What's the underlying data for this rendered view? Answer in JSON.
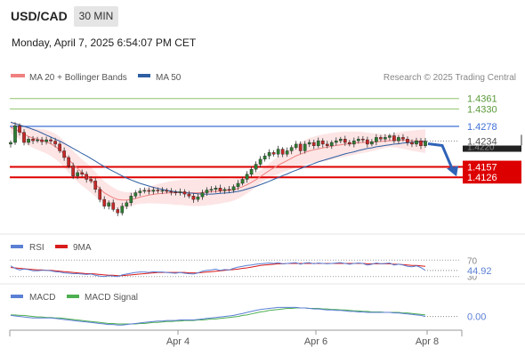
{
  "header": {
    "symbol": "USD/CAD",
    "timeframe": "30 MIN",
    "datetime": "Monday, April 7, 2025 6:54:07 PM CET"
  },
  "legend": {
    "ma20_label": "MA 20 + Bollinger Bands",
    "ma50_label": "MA 50",
    "credit": "Research © 2025 Trading Central"
  },
  "colors": {
    "candle_up": "#2e7d32",
    "candle_down": "#c62828",
    "ma20": "#f08080",
    "bb_fill": "#fde0e0",
    "ma50": "#2e5fa3",
    "support": "#dd0000",
    "resistance_blue": "#3f6fd8",
    "resistance_green": "#8fc46a",
    "rsi": "#5b7fd4",
    "rsi_ma": "#d81b1b",
    "macd": "#5b7fd4",
    "macd_signal": "#4caf50",
    "arrow": "#2f63b8"
  },
  "chart_data": [
    {
      "type": "candlestick",
      "title": "USD/CAD",
      "timeframe": "30 MIN",
      "x_ticks": [
        "Apr 4",
        "Apr 6",
        "Apr 8"
      ],
      "levels": [
        {
          "value": 1.4361,
          "label": "1.4361",
          "kind": "resistance"
        },
        {
          "value": 1.433,
          "label": "1.4330",
          "kind": "resistance"
        },
        {
          "value": 1.4278,
          "label": "1.4278",
          "kind": "pivot"
        },
        {
          "value": 1.4157,
          "label": "1.4157",
          "kind": "support"
        },
        {
          "value": 1.4126,
          "label": "1.4126",
          "kind": "support"
        }
      ],
      "last_price": {
        "value": 1.4234,
        "label": "1.4234"
      },
      "hidden_label": "1.4220",
      "ylim": [
        1.397,
        1.44
      ],
      "closes": [
        1.423,
        1.428,
        1.426,
        1.423,
        1.424,
        1.4235,
        1.4238,
        1.4232,
        1.4238,
        1.4234,
        1.4225,
        1.4205,
        1.4185,
        1.416,
        1.413,
        1.414,
        1.4135,
        1.412,
        1.4115,
        1.409,
        1.406,
        1.404,
        1.405,
        1.403,
        1.402,
        1.404,
        1.405,
        1.407,
        1.408,
        1.4085,
        1.4087,
        1.4084,
        1.4088,
        1.4086,
        1.4087,
        1.4084,
        1.4082,
        1.408,
        1.4083,
        1.4076,
        1.407,
        1.406,
        1.4068,
        1.408,
        1.4088,
        1.409,
        1.4094,
        1.4086,
        1.409,
        1.4088,
        1.4098,
        1.4108,
        1.412,
        1.4135,
        1.415,
        1.4165,
        1.418,
        1.419,
        1.42,
        1.4195,
        1.421,
        1.4195,
        1.4205,
        1.4215,
        1.4225,
        1.4205,
        1.4225,
        1.423,
        1.422,
        1.4235,
        1.4225,
        1.422,
        1.423,
        1.4235,
        1.424,
        1.423,
        1.4225,
        1.4235,
        1.424,
        1.4238,
        1.4225,
        1.4232,
        1.4245,
        1.424,
        1.4245,
        1.425,
        1.4235,
        1.4245,
        1.424,
        1.423,
        1.4225,
        1.4235,
        1.422,
        1.4234
      ],
      "ma20": [
        1.4275,
        1.427,
        1.4262,
        1.4255,
        1.4248,
        1.4243,
        1.424,
        1.4236,
        1.4232,
        1.4226,
        1.4218,
        1.4208,
        1.4195,
        1.418,
        1.4165,
        1.4152,
        1.414,
        1.413,
        1.4118,
        1.4105,
        1.4092,
        1.408,
        1.4072,
        1.4065,
        1.406,
        1.4058,
        1.4058,
        1.406,
        1.4063,
        1.4067,
        1.407,
        1.4073,
        1.4075,
        1.4077,
        1.4078,
        1.4079,
        1.408,
        1.408,
        1.4081,
        1.4081,
        1.408,
        1.408,
        1.408,
        1.4081,
        1.4082,
        1.4083,
        1.4084,
        1.4085,
        1.4086,
        1.4087,
        1.4089,
        1.4093,
        1.4098,
        1.4104,
        1.4111,
        1.4119,
        1.4128,
        1.4137,
        1.4146,
        1.4154,
        1.4162,
        1.4169,
        1.4176,
        1.4183,
        1.419,
        1.4195,
        1.42,
        1.4205,
        1.4208,
        1.4211,
        1.4214,
        1.4216,
        1.4219,
        1.4221,
        1.4223,
        1.4225,
        1.4226,
        1.4228,
        1.4229,
        1.423,
        1.423,
        1.4231,
        1.4232,
        1.4233,
        1.4234,
        1.4235,
        1.4236,
        1.4237,
        1.4237,
        1.4236,
        1.4235,
        1.4235,
        1.4234,
        1.4234
      ],
      "ma50": [
        1.429,
        1.4286,
        1.4282,
        1.4278,
        1.4274,
        1.4269,
        1.4264,
        1.4258,
        1.4252,
        1.4246,
        1.424,
        1.4234,
        1.4227,
        1.422,
        1.4212,
        1.4205,
        1.4197,
        1.419,
        1.4182,
        1.4174,
        1.4166,
        1.4158,
        1.4151,
        1.4144,
        1.4137,
        1.413,
        1.4124,
        1.4118,
        1.4113,
        1.4108,
        1.4104,
        1.41,
        1.4096,
        1.4093,
        1.409,
        1.4087,
        1.4085,
        1.4083,
        1.4081,
        1.408,
        1.4079,
        1.4078,
        1.4077,
        1.4076,
        1.4076,
        1.4076,
        1.4077,
        1.4078,
        1.4079,
        1.408,
        1.4082,
        1.4084,
        1.4087,
        1.4091,
        1.4095,
        1.4099,
        1.4104,
        1.4109,
        1.4114,
        1.412,
        1.4125,
        1.4131,
        1.4136,
        1.4142,
        1.4147,
        1.4152,
        1.4157,
        1.4162,
        1.4167,
        1.4172,
        1.4176,
        1.418,
        1.4184,
        1.4188,
        1.4192,
        1.4196,
        1.4199,
        1.4202,
        1.4206,
        1.4209,
        1.4212,
        1.4214,
        1.4217,
        1.4219,
        1.4221,
        1.4223,
        1.4225,
        1.4226,
        1.4228,
        1.4229,
        1.423,
        1.4231,
        1.4232,
        1.4233
      ]
    },
    {
      "type": "line",
      "title": "RSI",
      "series": [
        {
          "name": "RSI",
          "values": [
            56,
            50,
            46,
            48,
            47,
            44,
            44,
            45,
            45,
            44,
            42,
            41,
            39,
            38,
            37,
            37,
            36,
            35,
            36,
            33,
            31,
            30,
            32,
            31,
            30,
            34,
            36,
            38,
            40,
            41,
            41,
            40,
            42,
            41,
            41,
            40,
            39,
            38,
            40,
            38,
            37,
            36,
            39,
            43,
            45,
            46,
            48,
            45,
            47,
            46,
            50,
            53,
            55,
            57,
            58,
            60,
            61,
            62,
            63,
            62,
            64,
            61,
            62,
            63,
            64,
            60,
            63,
            64,
            61,
            63,
            62,
            61,
            62,
            63,
            64,
            62,
            60,
            62,
            63,
            62,
            58,
            60,
            63,
            61,
            62,
            63,
            58,
            60,
            58,
            55,
            54,
            56,
            52,
            44.92
          ]
        },
        {
          "name": "9MA",
          "values": [
            52,
            51,
            50,
            49,
            48,
            47,
            46,
            46,
            45,
            45,
            44,
            43,
            42,
            41,
            40,
            39,
            38,
            37,
            37,
            36,
            35,
            34,
            33,
            33,
            32,
            32,
            33,
            34,
            35,
            36,
            37,
            38,
            39,
            40,
            40,
            40,
            40,
            40,
            40,
            40,
            39,
            39,
            39,
            40,
            41,
            42,
            43,
            44,
            45,
            46,
            47,
            48,
            50,
            51,
            53,
            55,
            57,
            58,
            59,
            60,
            61,
            61,
            62,
            62,
            62,
            62,
            62,
            62,
            62,
            62,
            62,
            62,
            62,
            62,
            62,
            62,
            62,
            62,
            62,
            62,
            61,
            61,
            61,
            61,
            61,
            61,
            60,
            60,
            59,
            58,
            57,
            57,
            56,
            55
          ]
        }
      ],
      "levels": [
        {
          "value": 70,
          "label": "70"
        },
        {
          "value": 30,
          "label": "30"
        }
      ],
      "last_value": {
        "value": 44.92,
        "label": "44.92"
      },
      "ylim": [
        25,
        75
      ]
    },
    {
      "type": "line",
      "title": "MACD",
      "series": [
        {
          "name": "MACD",
          "values": [
            0.0002,
            0.0001,
            0.0,
            -0.0001,
            -0.0002,
            -0.0003,
            -0.0003,
            -0.0003,
            -0.0003,
            -0.0003,
            -0.0004,
            -0.0005,
            -0.0006,
            -0.0007,
            -0.0008,
            -0.0009,
            -0.001,
            -0.0011,
            -0.0012,
            -0.0013,
            -0.0014,
            -0.0015,
            -0.0016,
            -0.0016,
            -0.0017,
            -0.0017,
            -0.0016,
            -0.0015,
            -0.0014,
            -0.0013,
            -0.0012,
            -0.0011,
            -0.001,
            -0.0009,
            -0.0009,
            -0.0008,
            -0.0008,
            -0.0008,
            -0.0007,
            -0.0007,
            -0.0007,
            -0.0007,
            -0.0006,
            -0.0005,
            -0.0004,
            -0.0003,
            -0.0002,
            -0.0001,
            0.0,
            0.0001,
            0.0002,
            0.0004,
            0.0006,
            0.0008,
            0.001,
            0.0012,
            0.0014,
            0.0015,
            0.0016,
            0.0017,
            0.0018,
            0.0018,
            0.0018,
            0.0018,
            0.0018,
            0.0017,
            0.0017,
            0.0016,
            0.0015,
            0.0015,
            0.0014,
            0.0013,
            0.0013,
            0.0012,
            0.0012,
            0.0011,
            0.001,
            0.001,
            0.0009,
            0.0009,
            0.0008,
            0.0008,
            0.0008,
            0.0008,
            0.0008,
            0.0008,
            0.0007,
            0.0007,
            0.0006,
            0.0005,
            0.0004,
            0.0003,
            0.0002,
            0.0
          ]
        },
        {
          "name": "MACD Signal",
          "values": [
            0.0003,
            0.0003,
            0.0002,
            0.0002,
            0.0001,
            0.0,
            -0.0001,
            -0.0001,
            -0.0002,
            -0.0002,
            -0.0003,
            -0.0003,
            -0.0004,
            -0.0005,
            -0.0006,
            -0.0007,
            -0.0008,
            -0.0009,
            -0.001,
            -0.0011,
            -0.0012,
            -0.0013,
            -0.0014,
            -0.0014,
            -0.0015,
            -0.0015,
            -0.0015,
            -0.0015,
            -0.0015,
            -0.0014,
            -0.0014,
            -0.0013,
            -0.0012,
            -0.0012,
            -0.0011,
            -0.001,
            -0.001,
            -0.0009,
            -0.0009,
            -0.0008,
            -0.0008,
            -0.0008,
            -0.0007,
            -0.0007,
            -0.0006,
            -0.0005,
            -0.0005,
            -0.0004,
            -0.0003,
            -0.0002,
            -0.0001,
            0.0,
            0.0002,
            0.0003,
            0.0005,
            0.0007,
            0.0009,
            0.001,
            0.0012,
            0.0013,
            0.0014,
            0.0015,
            0.0016,
            0.0016,
            0.0017,
            0.0017,
            0.0017,
            0.0016,
            0.0016,
            0.0016,
            0.0015,
            0.0015,
            0.0014,
            0.0014,
            0.0013,
            0.0013,
            0.0012,
            0.0011,
            0.0011,
            0.001,
            0.001,
            0.0009,
            0.0009,
            0.0009,
            0.0008,
            0.0008,
            0.0008,
            0.0008,
            0.0007,
            0.0007,
            0.0006,
            0.0005,
            0.0004,
            0.0003
          ]
        }
      ],
      "last_value": {
        "value": 0.0,
        "label": "0.00"
      },
      "ylim": [
        -0.0022,
        0.0024
      ]
    }
  ]
}
